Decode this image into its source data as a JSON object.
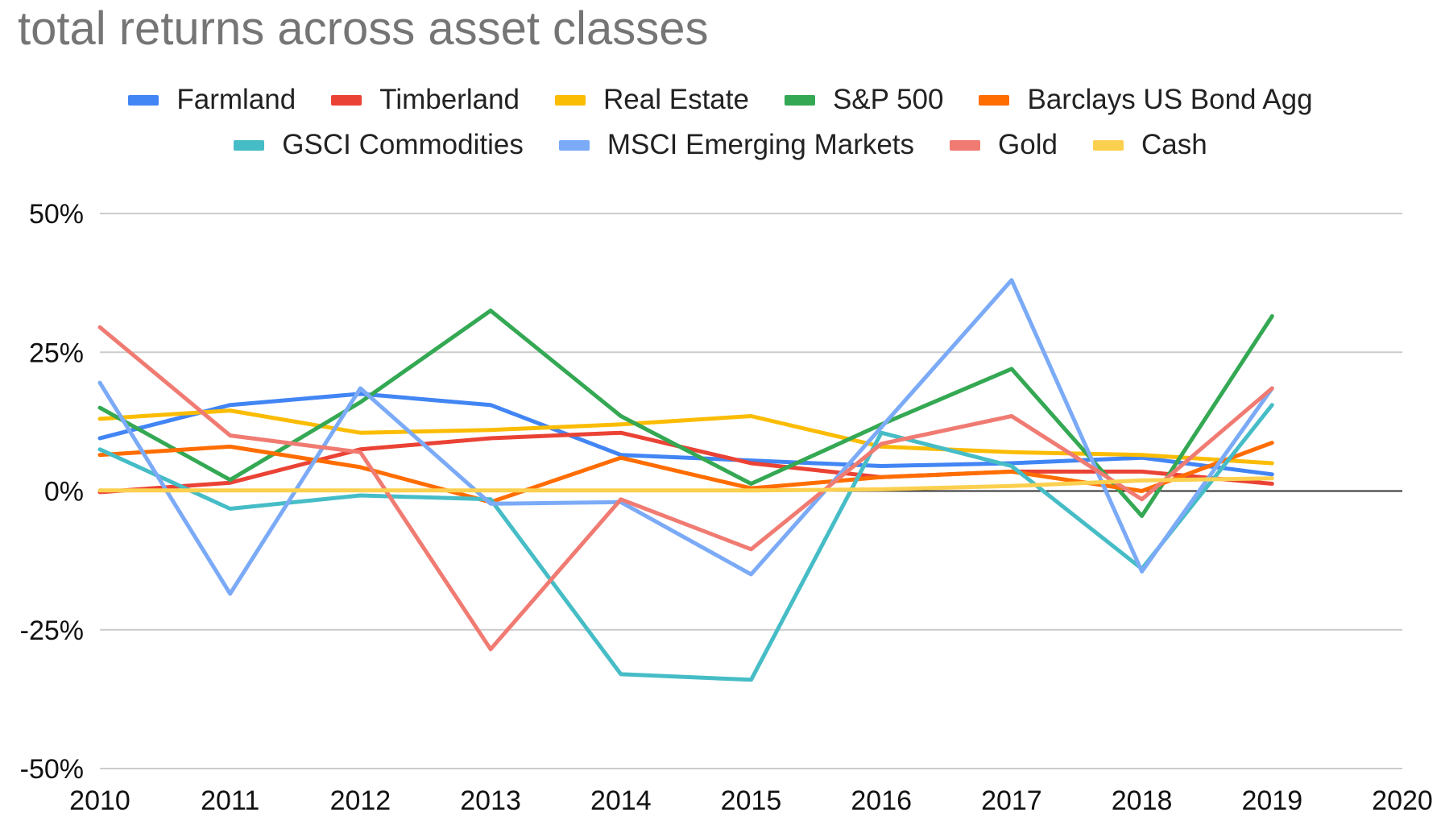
{
  "chart_data": {
    "type": "line",
    "title": "total returns across asset classes",
    "xlabel": "",
    "ylabel": "",
    "x": [
      2010,
      2011,
      2012,
      2013,
      2014,
      2015,
      2016,
      2017,
      2018,
      2019
    ],
    "xlim": [
      2010,
      2020
    ],
    "ylim": [
      -50,
      50
    ],
    "x_ticks": [
      "2010",
      "2011",
      "2012",
      "2013",
      "2014",
      "2015",
      "2016",
      "2017",
      "2018",
      "2019",
      "2020"
    ],
    "y_ticks": [
      {
        "value": 50,
        "label": "50%"
      },
      {
        "value": 25,
        "label": "25%"
      },
      {
        "value": 0,
        "label": "0%"
      },
      {
        "value": -25,
        "label": "-25%"
      },
      {
        "value": -50,
        "label": "-50%"
      }
    ],
    "grid": true,
    "legend_position": "top",
    "series": [
      {
        "name": "Farmland",
        "color": "#4285F4",
        "values": [
          9.5,
          15.5,
          17.5,
          15.5,
          6.5,
          5.5,
          4.5,
          5.0,
          6.0,
          3.0
        ]
      },
      {
        "name": "Timberland",
        "color": "#EA4335",
        "values": [
          -0.2,
          1.5,
          7.5,
          9.5,
          10.5,
          5.0,
          2.5,
          3.5,
          3.5,
          1.3
        ]
      },
      {
        "name": "Real Estate",
        "color": "#FBBC04",
        "values": [
          13.0,
          14.5,
          10.5,
          11.0,
          12.0,
          13.5,
          8.0,
          7.0,
          6.5,
          5.0
        ]
      },
      {
        "name": "S&P 500",
        "color": "#34A853",
        "values": [
          15.0,
          2.0,
          16.0,
          32.5,
          13.5,
          1.3,
          12.0,
          22.0,
          -4.5,
          31.5
        ]
      },
      {
        "name": "Barclays US Bond Agg",
        "color": "#FF6D01",
        "values": [
          6.5,
          8.0,
          4.3,
          -2.0,
          6.0,
          0.5,
          2.5,
          3.5,
          0.0,
          8.7
        ]
      },
      {
        "name": "GSCI Commodities",
        "color": "#46BDC6",
        "values": [
          7.5,
          -3.2,
          -0.8,
          -1.5,
          -33.0,
          -34.0,
          10.5,
          4.5,
          -14.0,
          15.5
        ]
      },
      {
        "name": "MSCI Emerging Markets",
        "color": "#7BAAF7",
        "values": [
          19.5,
          -18.5,
          18.5,
          -2.3,
          -2.0,
          -15.0,
          11.5,
          38.0,
          -14.5,
          18.5
        ]
      },
      {
        "name": "Gold",
        "color": "#F07B72",
        "values": [
          29.5,
          10.0,
          7.0,
          -28.5,
          -1.5,
          -10.5,
          8.5,
          13.5,
          -1.5,
          18.5
        ]
      },
      {
        "name": "Cash",
        "color": "#FCD04F",
        "values": [
          0.1,
          0.1,
          0.1,
          0.1,
          0.1,
          0.1,
          0.3,
          0.9,
          1.9,
          2.3
        ]
      }
    ]
  }
}
